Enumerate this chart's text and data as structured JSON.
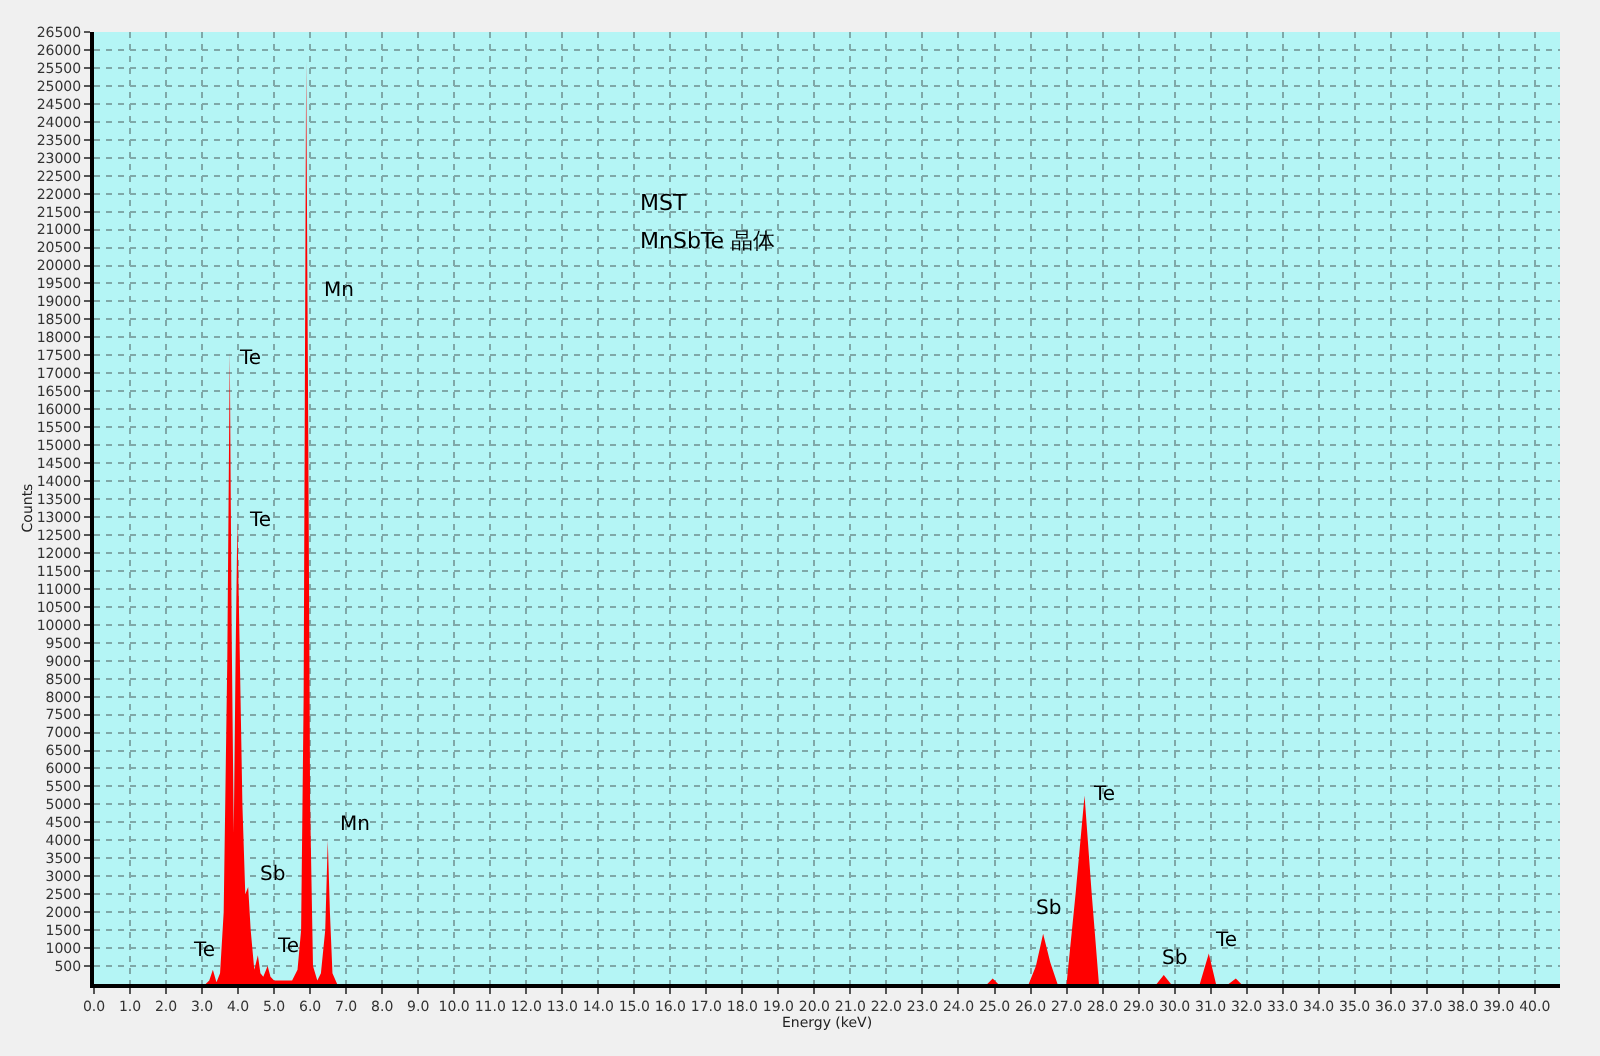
{
  "chart_data": {
    "type": "area",
    "xlabel": "Energy (keV)",
    "ylabel": "Counts",
    "x": [
      0.0,
      3.1,
      3.2,
      3.3,
      3.4,
      3.5,
      3.6,
      3.7,
      3.77,
      3.82,
      3.88,
      3.93,
      3.98,
      4.05,
      4.12,
      4.2,
      4.28,
      4.35,
      4.45,
      4.55,
      4.62,
      4.7,
      4.82,
      4.9,
      5.0,
      5.5,
      5.65,
      5.75,
      5.82,
      5.89,
      5.95,
      6.0,
      6.08,
      6.2,
      6.3,
      6.42,
      6.49,
      6.55,
      6.62,
      6.75,
      24.8,
      24.95,
      25.1,
      25.95,
      26.15,
      26.35,
      26.55,
      26.75,
      27.0,
      27.25,
      27.5,
      27.7,
      27.9,
      29.5,
      29.7,
      29.9,
      30.7,
      30.95,
      31.15,
      31.5,
      31.7,
      31.85,
      40.7
    ],
    "series": [
      {
        "color": "#ff0000",
        "values": [
          0,
          0,
          100,
          400,
          50,
          300,
          2000,
          9000,
          17600,
          10000,
          4200,
          9000,
          12900,
          9000,
          5000,
          2500,
          2700,
          1500,
          400,
          800,
          300,
          200,
          500,
          200,
          100,
          100,
          400,
          1500,
          8000,
          25700,
          15000,
          5000,
          500,
          100,
          300,
          1500,
          4000,
          2000,
          300,
          0,
          0,
          150,
          0,
          0,
          500,
          1400,
          600,
          0,
          0,
          2500,
          5250,
          2500,
          0,
          0,
          250,
          0,
          0,
          850,
          0,
          0,
          150,
          0,
          0
        ]
      }
    ],
    "xlim": [
      0,
      40.7
    ],
    "xticks": [
      {
        "value": 0,
        "label": "0.0"
      },
      {
        "value": 1,
        "label": "1.0"
      },
      {
        "value": 2,
        "label": "2.0"
      },
      {
        "value": 3,
        "label": "3.0"
      },
      {
        "value": 4,
        "label": "4.0"
      },
      {
        "value": 5,
        "label": "5.0"
      },
      {
        "value": 6,
        "label": "6.0"
      },
      {
        "value": 7,
        "label": "7.0"
      },
      {
        "value": 8,
        "label": "8.0"
      },
      {
        "value": 9,
        "label": "9.0"
      },
      {
        "value": 10,
        "label": "10.0"
      },
      {
        "value": 11,
        "label": "11.0"
      },
      {
        "value": 12,
        "label": "12.0"
      },
      {
        "value": 13,
        "label": "13.0"
      },
      {
        "value": 14,
        "label": "14.0"
      },
      {
        "value": 15,
        "label": "15.0"
      },
      {
        "value": 16,
        "label": "16.0"
      },
      {
        "value": 17,
        "label": "17.0"
      },
      {
        "value": 18,
        "label": "18.0"
      },
      {
        "value": 19,
        "label": "19.0"
      },
      {
        "value": 20,
        "label": "20.0"
      },
      {
        "value": 21,
        "label": "21.0"
      },
      {
        "value": 22,
        "label": "22.0"
      },
      {
        "value": 23,
        "label": "23.0"
      },
      {
        "value": 24,
        "label": "24.0"
      },
      {
        "value": 25,
        "label": "25.0"
      },
      {
        "value": 26,
        "label": "26.0"
      },
      {
        "value": 27,
        "label": "27.0"
      },
      {
        "value": 28,
        "label": "28.0"
      },
      {
        "value": 29,
        "label": "29.0"
      },
      {
        "value": 30,
        "label": "30.0"
      },
      {
        "value": 31,
        "label": "31.0"
      },
      {
        "value": 32,
        "label": "32.0"
      },
      {
        "value": 33,
        "label": "33.0"
      },
      {
        "value": 34,
        "label": "34.0"
      },
      {
        "value": 35,
        "label": "35.0"
      },
      {
        "value": 36,
        "label": "36.0"
      },
      {
        "value": 37,
        "label": "37.0"
      },
      {
        "value": 38,
        "label": "38.0"
      },
      {
        "value": 39,
        "label": "39.0"
      },
      {
        "value": 40,
        "label": "40.0"
      }
    ],
    "ylim": [
      0,
      26500
    ],
    "yticks": [
      500,
      1000,
      1500,
      2000,
      2500,
      3000,
      3500,
      4000,
      4500,
      5000,
      5500,
      6000,
      6500,
      7000,
      7500,
      8000,
      8500,
      9000,
      9500,
      10000,
      10500,
      11000,
      11500,
      12000,
      12500,
      13000,
      13500,
      14000,
      14500,
      15000,
      15500,
      16000,
      16500,
      17000,
      17500,
      18000,
      18500,
      19000,
      19500,
      20000,
      20500,
      21000,
      21500,
      22000,
      22500,
      23000,
      23500,
      24000,
      24500,
      25000,
      25500,
      26000,
      26500
    ],
    "grid": true,
    "annotations": [
      "MST",
      "MnSbTe 晶体",
      {
        "text": "Te",
        "x": 3.3,
        "y": 400
      },
      {
        "text": "Te",
        "x": 3.77,
        "y": 17600
      },
      {
        "text": "Te",
        "x": 3.98,
        "y": 12900
      },
      {
        "text": "Sb",
        "x": 4.28,
        "y": 2700
      },
      {
        "text": "Te",
        "x": 4.82,
        "y": 500
      },
      {
        "text": "Mn",
        "x": 5.89,
        "y": 19300
      },
      {
        "text": "Mn",
        "x": 6.49,
        "y": 4000
      },
      {
        "text": "Sb",
        "x": 26.35,
        "y": 1400
      },
      {
        "text": "Te",
        "x": 27.5,
        "y": 5250
      },
      {
        "text": "Sb",
        "x": 29.7,
        "y": 250
      },
      {
        "text": "Te",
        "x": 30.95,
        "y": 850
      }
    ]
  }
}
